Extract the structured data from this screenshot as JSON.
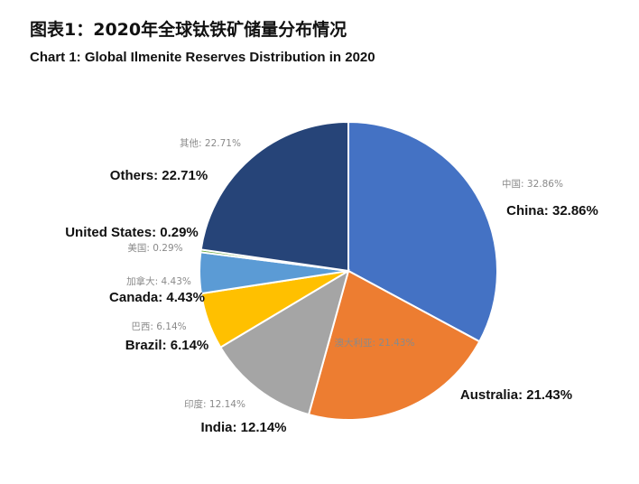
{
  "title_cn": "图表1：2020年全球钛铁矿储量分布情况",
  "title_en": "Chart 1: Global Ilmenite Reserves Distribution in 2020",
  "chart_data": {
    "type": "pie",
    "unit": "%",
    "legend": "none",
    "slices": [
      {
        "label_cn": "中国",
        "label_en": "China",
        "value": 32.86,
        "text_cn": "中国: 32.86%",
        "text_en": "China: 32.86%",
        "color": "#4472C4"
      },
      {
        "label_cn": "澳大利亚",
        "label_en": "Australia",
        "value": 21.43,
        "text_cn": "澳大利亚: 21.43%",
        "text_en": "Australia: 21.43%",
        "color": "#ED7D31"
      },
      {
        "label_cn": "印度",
        "label_en": "India",
        "value": 12.14,
        "text_cn": "印度: 12.14%",
        "text_en": "India: 12.14%",
        "color": "#A5A5A5"
      },
      {
        "label_cn": "巴西",
        "label_en": "Brazil",
        "value": 6.14,
        "text_cn": "巴西: 6.14%",
        "text_en": "Brazil: 6.14%",
        "color": "#FFC000"
      },
      {
        "label_cn": "加拿大",
        "label_en": "Canada",
        "value": 4.43,
        "text_cn": "加拿大: 4.43%",
        "text_en": "Canada: 4.43%",
        "color": "#5B9BD5"
      },
      {
        "label_cn": "美国",
        "label_en": "United States",
        "value": 0.29,
        "text_cn": "美国: 0.29%",
        "text_en": "United States: 0.29%",
        "color": "#70AD47"
      },
      {
        "label_cn": "其他",
        "label_en": "Others",
        "value": 22.71,
        "text_cn": "其他: 22.71%",
        "text_en": "Others: 22.71%",
        "color": "#264478"
      }
    ]
  }
}
